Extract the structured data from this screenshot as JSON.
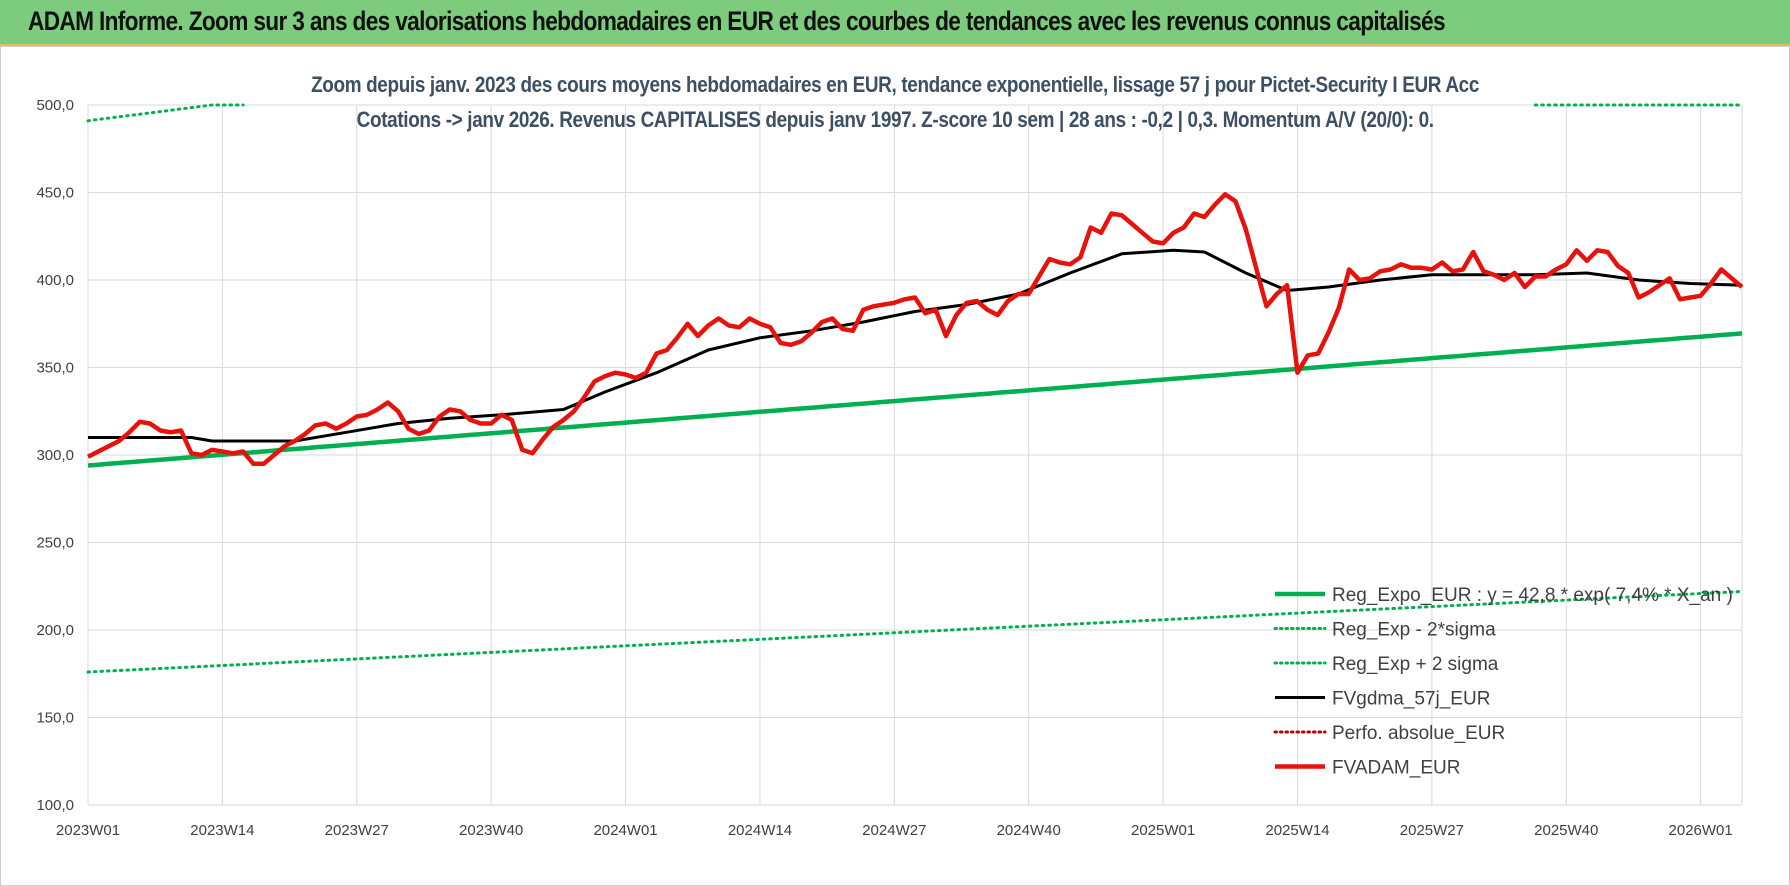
{
  "banner": {
    "title": "ADAM Informe. Zoom sur 3 ans des valorisations hebdomadaires en EUR et des courbes de tendances avec les revenus connus capitalisés",
    "color": "#7dcb7d"
  },
  "chart_data": {
    "type": "line",
    "title": "Zoom depuis janv. 2023 des cours moyens hebdomadaires en EUR, tendance exponentielle, lissage 57 j pour Pictet-Security I EUR Acc",
    "subtitle": "Cotations -> janv 2026. Revenus CAPITALISES depuis janv 1997. Z-score 10 sem | 28 ans : -0,2 | 0,3. Momentum A/V (20/0): 0.",
    "xlabel": "",
    "ylabel": "",
    "ylim": [
      100,
      500
    ],
    "yticks": [
      "100,0",
      "150,0",
      "200,0",
      "250,0",
      "300,0",
      "350,0",
      "400,0",
      "450,0",
      "500,0"
    ],
    "xticks": [
      "2023W01",
      "2023W14",
      "2023W27",
      "2023W40",
      "2024W01",
      "2024W14",
      "2024W27",
      "2024W40",
      "2025W01",
      "2025W14",
      "2025W27",
      "2025W40",
      "2026W01"
    ],
    "xtick_weeks": [
      0,
      13,
      26,
      39,
      52,
      65,
      78,
      91,
      104,
      117,
      130,
      143,
      156
    ],
    "x_range": [
      0,
      160
    ],
    "grid": true,
    "legend_position": "bottom-right",
    "series": [
      {
        "name": "Reg_Expo_EUR : y = 42,8 * exp( 7,4% * X_an )",
        "style": "solid-thick",
        "color": "#00b050",
        "x": [
          0,
          160
        ],
        "values": [
          294,
          369.5
        ]
      },
      {
        "name": "Reg_Exp - 2*sigma",
        "style": "dotted",
        "color": "#00b050",
        "x": [
          0,
          160
        ],
        "values": [
          176,
          222
        ]
      },
      {
        "name": "Reg_Exp + 2 sigma",
        "style": "dotted",
        "color": "#00b050",
        "x": [
          0,
          12,
          149,
          160
        ],
        "values": [
          491,
          500,
          500,
          500
        ],
        "segments": [
          [
            0,
            15
          ],
          [
            140,
            160
          ]
        ]
      },
      {
        "name": "FVgdma_57j_EUR",
        "style": "solid",
        "color": "#000000",
        "x": [
          0,
          5,
          10,
          12,
          16,
          20,
          25,
          30,
          35,
          40,
          44,
          46,
          50,
          55,
          60,
          65,
          70,
          75,
          80,
          85,
          90,
          95,
          100,
          105,
          108,
          112,
          116,
          120,
          125,
          130,
          135,
          140,
          145,
          150,
          155,
          160
        ],
        "values": [
          310,
          310,
          310,
          308,
          308,
          308,
          313,
          318,
          321,
          323,
          325,
          326,
          336,
          347,
          360,
          367,
          371,
          376,
          382,
          386,
          392,
          404,
          415,
          417,
          416,
          404,
          394,
          396,
          400,
          403,
          403,
          403,
          404,
          400,
          398,
          397
        ]
      },
      {
        "name": "Perfo. absolue_EUR",
        "style": "dotted",
        "color": "#c00000",
        "x": [],
        "values": []
      },
      {
        "name": "FVADAM_EUR",
        "style": "solid-thick",
        "color": "#e8120c",
        "x": [
          0,
          1,
          2,
          3,
          4,
          5,
          6,
          7,
          8,
          9,
          10,
          11,
          12,
          13,
          14,
          15,
          16,
          17,
          18,
          19,
          20,
          21,
          22,
          23,
          24,
          25,
          26,
          27,
          28,
          29,
          30,
          31,
          32,
          33,
          34,
          35,
          36,
          37,
          38,
          39,
          40,
          41,
          42,
          43,
          44,
          45,
          46,
          47,
          48,
          49,
          50,
          51,
          52,
          53,
          54,
          55,
          56,
          57,
          58,
          59,
          60,
          61,
          62,
          63,
          64,
          65,
          66,
          67,
          68,
          69,
          70,
          71,
          72,
          73,
          74,
          75,
          76,
          77,
          78,
          79,
          80,
          81,
          82,
          83,
          84,
          85,
          86,
          87,
          88,
          89,
          90,
          91,
          92,
          93,
          94,
          95,
          96,
          97,
          98,
          99,
          100,
          101,
          102,
          103,
          104,
          105,
          106,
          107,
          108,
          109,
          110,
          111,
          112,
          113,
          114,
          115,
          116,
          117,
          118,
          119,
          120,
          121,
          122,
          123,
          124,
          125,
          126,
          127,
          128,
          129,
          130,
          131,
          132,
          133,
          134,
          135,
          136,
          137,
          138,
          139,
          140,
          141,
          142,
          143,
          144,
          145,
          146,
          147,
          148,
          149,
          150,
          151,
          152,
          153,
          154,
          155,
          156,
          157,
          158,
          159,
          160
        ],
        "values": [
          299,
          302,
          305,
          308,
          313,
          319,
          318,
          314,
          313,
          314,
          301,
          300,
          303,
          302,
          301,
          302,
          295,
          295,
          300,
          305,
          308,
          312,
          317,
          318,
          315,
          318,
          322,
          323,
          326,
          330,
          325,
          315,
          312,
          314,
          322,
          326,
          325,
          320,
          318,
          318,
          323,
          320,
          303,
          301,
          309,
          316,
          320,
          325,
          333,
          342,
          345,
          347,
          346,
          344,
          347,
          358,
          360,
          367,
          375,
          368,
          374,
          378,
          374,
          373,
          378,
          375,
          373,
          364,
          363,
          365,
          370,
          376,
          378,
          372,
          371,
          383,
          385,
          386,
          387,
          389,
          390,
          381,
          383,
          368,
          380,
          387,
          388,
          383,
          380,
          388,
          392,
          392,
          402,
          412,
          410,
          409,
          413,
          430,
          427,
          438,
          437,
          432,
          427,
          422,
          421,
          427,
          430,
          438,
          436,
          443,
          449,
          445,
          429,
          407,
          385,
          392,
          397,
          347,
          357,
          358,
          370,
          384,
          406,
          400,
          401,
          405,
          406,
          409,
          407,
          407,
          406,
          410,
          405,
          406,
          416,
          405,
          403,
          400,
          404,
          396,
          402,
          402,
          406,
          409,
          417,
          411,
          417,
          416,
          408,
          404,
          390,
          393,
          397,
          401,
          389,
          390,
          391,
          398,
          406,
          401,
          396
        ]
      }
    ]
  }
}
